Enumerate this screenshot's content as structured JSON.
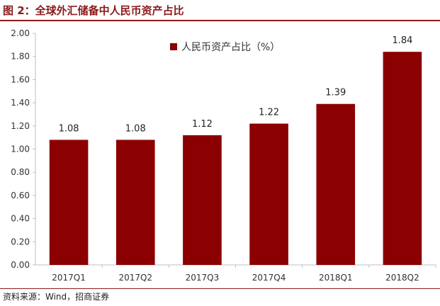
{
  "figure_title": "图 2：全球外汇储备中人民币资产占比",
  "source_note": "资料来源：Wind，招商证券",
  "colors": {
    "bar": "#8b0000",
    "title": "#8b1a1a",
    "axis": "#bfbfbf",
    "text": "#333333"
  },
  "chart_data": {
    "type": "bar",
    "title": "",
    "xlabel": "",
    "ylabel": "",
    "legend": "top-center",
    "grid": false,
    "ylim": [
      0,
      2.0
    ],
    "yticks": [
      "0.00",
      "0.20",
      "0.40",
      "0.60",
      "0.80",
      "1.00",
      "1.20",
      "1.40",
      "1.60",
      "1.80",
      "2.00"
    ],
    "categories": [
      "2017Q1",
      "2017Q2",
      "2017Q3",
      "2017Q4",
      "2018Q1",
      "2018Q2"
    ],
    "series": [
      {
        "name": "人民币资产占比（%）",
        "values": [
          1.08,
          1.08,
          1.12,
          1.22,
          1.39,
          1.84
        ],
        "labels": [
          "1.08",
          "1.08",
          "1.12",
          "1.22",
          "1.39",
          "1.84"
        ]
      }
    ]
  }
}
